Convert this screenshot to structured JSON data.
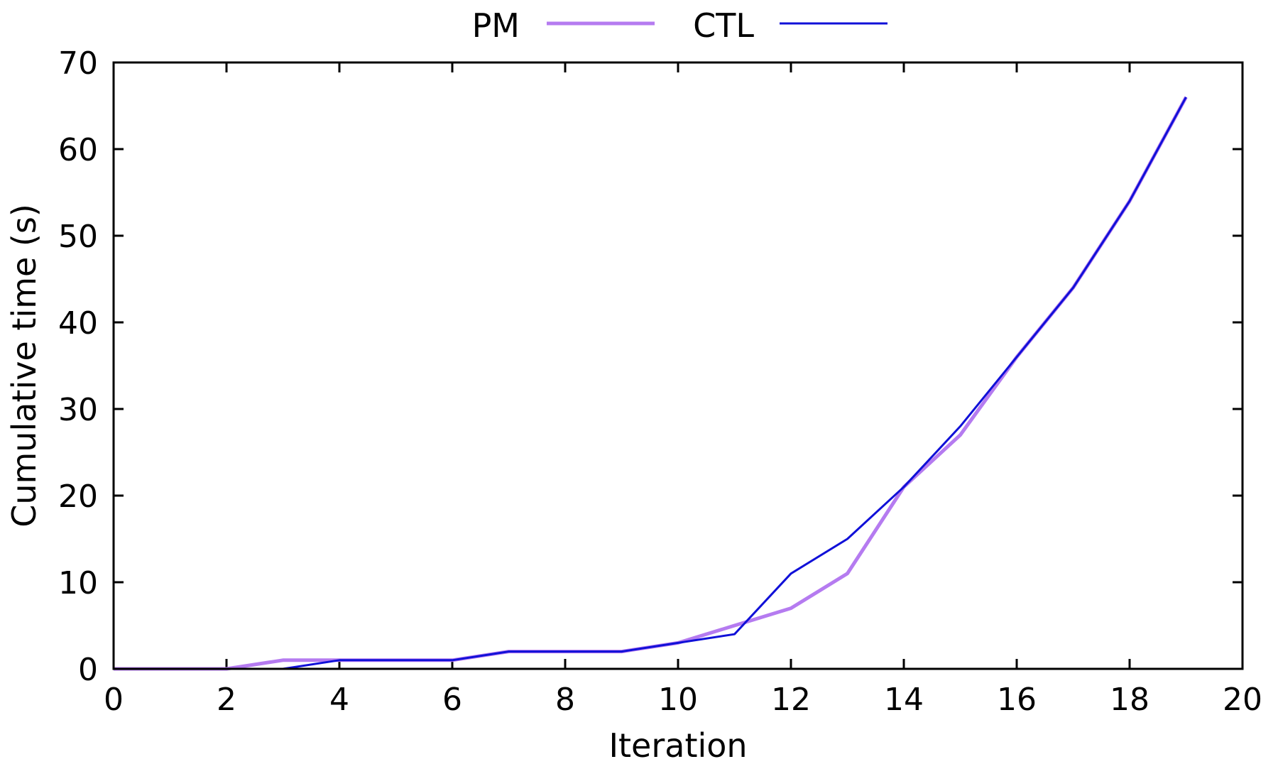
{
  "chart_data": {
    "type": "line",
    "title": "",
    "xlabel": "Iteration",
    "ylabel": "Cumulative time (s)",
    "xlim": [
      0,
      20
    ],
    "ylim": [
      0,
      70
    ],
    "xticks": [
      0,
      2,
      4,
      6,
      8,
      10,
      12,
      14,
      16,
      18,
      20
    ],
    "yticks": [
      0,
      10,
      20,
      30,
      40,
      50,
      60,
      70
    ],
    "grid": false,
    "legend_position": "top-center",
    "x": [
      0,
      1,
      2,
      3,
      4,
      5,
      6,
      7,
      8,
      9,
      10,
      11,
      12,
      13,
      14,
      15,
      16,
      17,
      18,
      19
    ],
    "series": [
      {
        "name": "PM",
        "color": "#b57bf0",
        "line_width": 5,
        "values": [
          0,
          0,
          0,
          1,
          1,
          1,
          1,
          2,
          2,
          2,
          3,
          5,
          7,
          11,
          21,
          27,
          36,
          44,
          54,
          66
        ]
      },
      {
        "name": "CTL",
        "color": "#1010d8",
        "line_width": 3,
        "values": [
          0,
          0,
          0,
          0,
          1,
          1,
          1,
          2,
          2,
          2,
          3,
          4,
          11,
          15,
          21,
          28,
          36,
          44,
          54,
          66
        ]
      }
    ]
  }
}
